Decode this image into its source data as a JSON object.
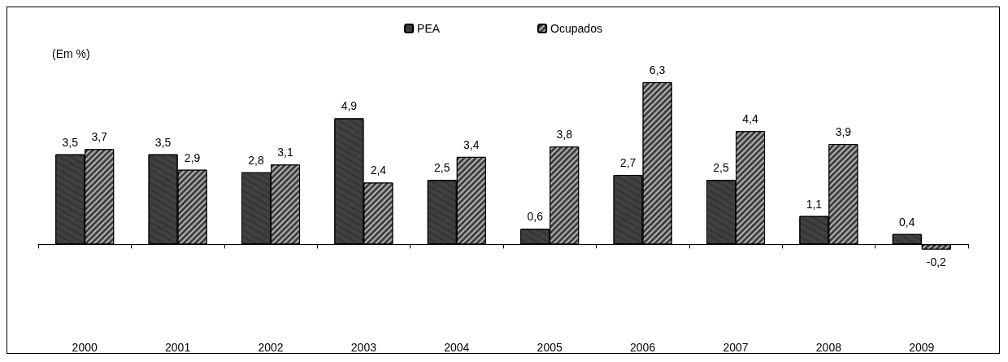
{
  "chart_data": {
    "type": "bar",
    "categories": [
      "2000",
      "2001",
      "2002",
      "2003",
      "2004",
      "2005",
      "2006",
      "2007",
      "2008",
      "2009"
    ],
    "series": [
      {
        "name": "PEA",
        "color": "#404040",
        "values": [
          3.5,
          3.5,
          2.8,
          4.9,
          2.5,
          0.6,
          2.7,
          2.5,
          1.1,
          0.4
        ],
        "value_labels": [
          "3,5",
          "3,5",
          "2,8",
          "4,9",
          "2,5",
          "0,6",
          "2,7",
          "2,5",
          "1,1",
          "0,4"
        ]
      },
      {
        "name": "Ocupados",
        "color": "#404040",
        "values": [
          3.7,
          2.9,
          3.1,
          2.4,
          3.4,
          3.8,
          6.3,
          4.4,
          3.9,
          -0.2
        ],
        "value_labels": [
          "3,7",
          "2,9",
          "3,1",
          "2,4",
          "3,4",
          "3,8",
          "6,3",
          "4,4",
          "3,9",
          "-0,2"
        ]
      }
    ],
    "annotations": [
      "(Em %)"
    ],
    "legend": "top",
    "grid": false
  }
}
